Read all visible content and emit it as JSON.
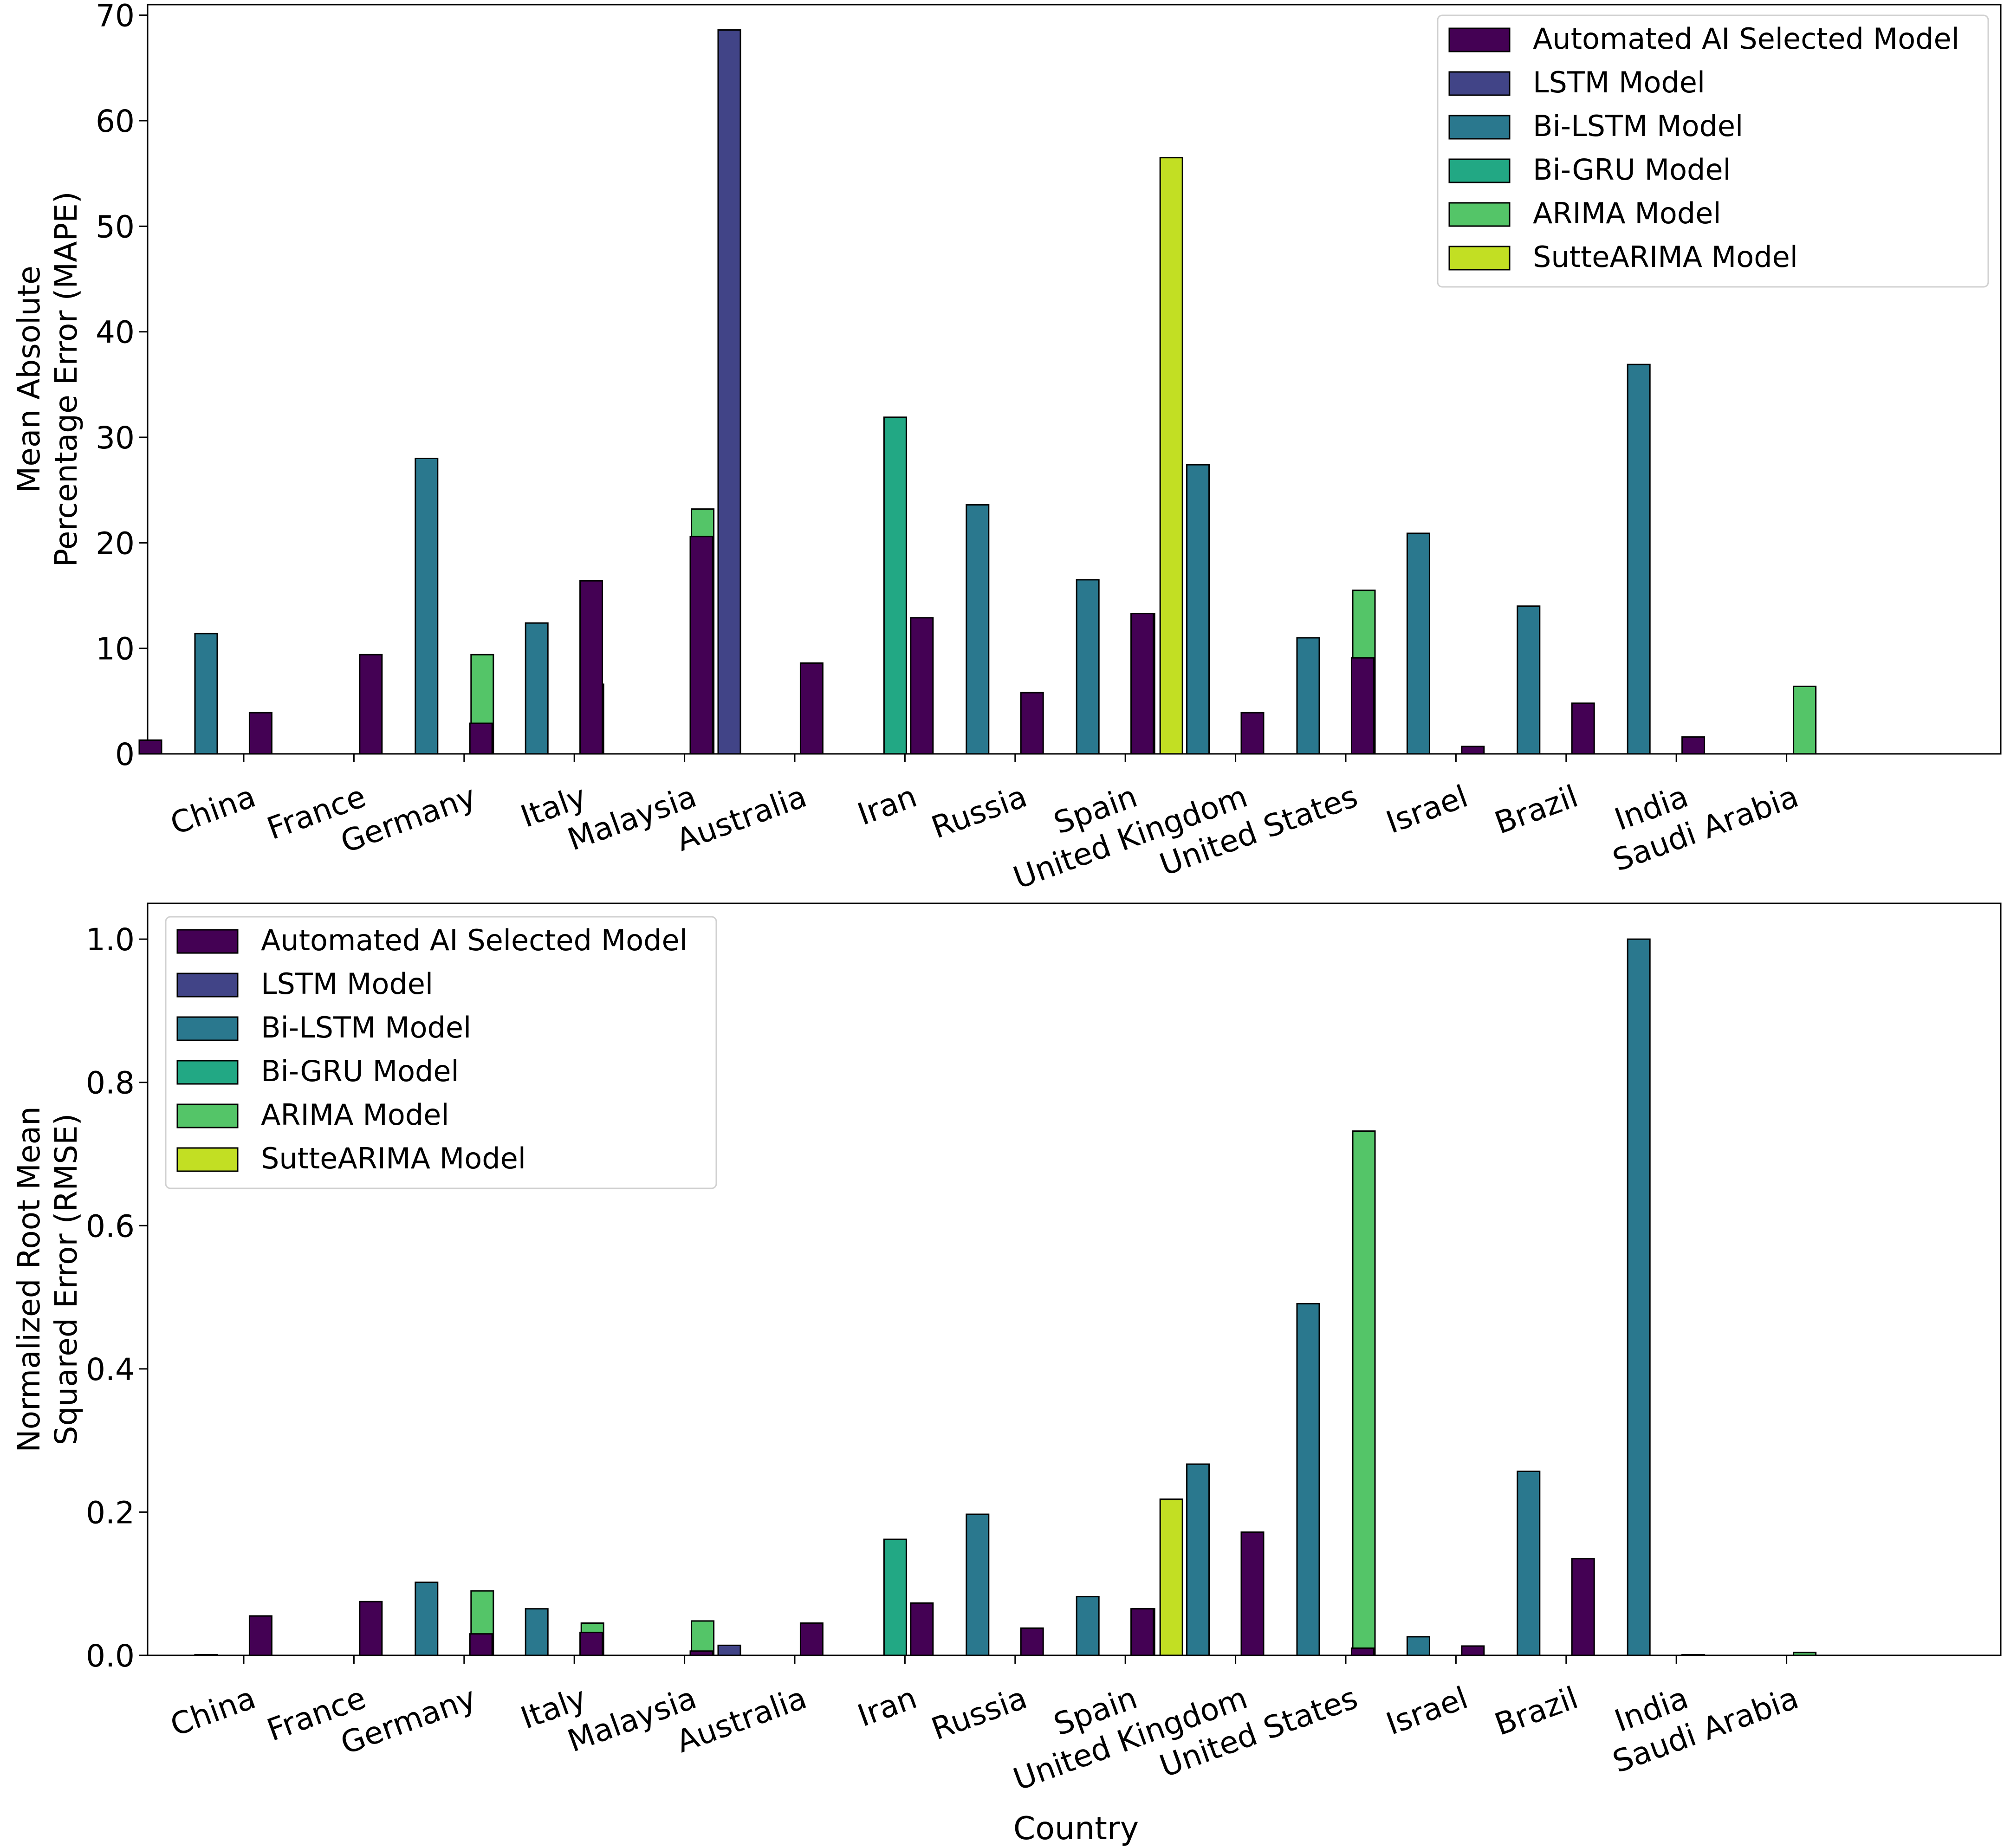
{
  "chart_data": [
    {
      "type": "bar",
      "title": "",
      "xlabel": "",
      "ylabel_lines": [
        "Mean Absolute",
        "Percentage Error (MAPE)"
      ],
      "ylim": [
        0,
        71
      ],
      "yticks": [
        "0",
        "10",
        "20",
        "30",
        "40",
        "50",
        "60",
        "70"
      ],
      "ytick_values": [
        0,
        10,
        20,
        30,
        40,
        50,
        60,
        70
      ],
      "legend_position": "top-right",
      "categories": [
        "China",
        "France",
        "Germany",
        "Italy",
        "Malaysia",
        "Australia",
        "Iran",
        "Russia",
        "Spain",
        "United Kingdom",
        "United States",
        "Israel",
        "Brazil",
        "India",
        "Saudi Arabia"
      ],
      "series": [
        {
          "name": "Automated AI Selected Model",
          "values": [
            1.3,
            3.9,
            9.4,
            2.9,
            16.4,
            20.6,
            8.6,
            12.9,
            5.8,
            13.3,
            3.9,
            9.1,
            0.7,
            4.8,
            1.6
          ]
        },
        {
          "name": "LSTM Model",
          "values": [
            0,
            0,
            0,
            0,
            0,
            68.6,
            0,
            0,
            0,
            0,
            0,
            0,
            0,
            0,
            0
          ]
        },
        {
          "name": "Bi-LSTM Model",
          "values": [
            11.4,
            0,
            28.0,
            12.4,
            0,
            0,
            0,
            23.6,
            16.5,
            27.4,
            11.0,
            20.9,
            14.0,
            36.9,
            0
          ]
        },
        {
          "name": "Bi-GRU Model",
          "values": [
            0,
            0,
            0,
            0,
            0,
            0,
            31.9,
            0,
            0,
            0,
            0,
            0,
            0,
            0,
            0
          ]
        },
        {
          "name": "ARIMA Model",
          "values": [
            0,
            0,
            9.4,
            6.6,
            23.2,
            0,
            0,
            0,
            13.3,
            0,
            15.5,
            0,
            0,
            0,
            6.4
          ]
        },
        {
          "name": "SutteARIMA Model",
          "values": [
            0,
            0,
            0,
            0,
            0,
            0,
            0,
            0,
            56.5,
            0,
            0,
            0,
            0,
            0,
            0
          ]
        }
      ]
    },
    {
      "type": "bar",
      "title": "",
      "xlabel": "Country",
      "ylabel_lines": [
        "Normalized Root Mean",
        "Squared Error (RMSE)"
      ],
      "ylim": [
        0,
        1.05
      ],
      "yticks": [
        "0.0",
        "0.2",
        "0.4",
        "0.6",
        "0.8",
        "1.0"
      ],
      "ytick_values": [
        0,
        0.2,
        0.4,
        0.6,
        0.8,
        1.0
      ],
      "legend_position": "top-left",
      "categories": [
        "China",
        "France",
        "Germany",
        "Italy",
        "Malaysia",
        "Australia",
        "Iran",
        "Russia",
        "Spain",
        "United Kingdom",
        "United States",
        "Israel",
        "Brazil",
        "India",
        "Saudi Arabia"
      ],
      "series": [
        {
          "name": "Automated AI Selected Model",
          "values": [
            0,
            0.055,
            0.075,
            0.03,
            0.032,
            0.006,
            0.045,
            0.073,
            0.038,
            0.065,
            0.172,
            0.01,
            0.013,
            0.135,
            0.001
          ]
        },
        {
          "name": "LSTM Model",
          "values": [
            0,
            0,
            0,
            0,
            0,
            0.014,
            0,
            0,
            0,
            0,
            0,
            0,
            0,
            0,
            0
          ]
        },
        {
          "name": "Bi-LSTM Model",
          "values": [
            0.001,
            0,
            0.102,
            0.065,
            0,
            0,
            0,
            0.197,
            0.082,
            0.267,
            0.491,
            0.026,
            0.257,
            1.0,
            0
          ]
        },
        {
          "name": "Bi-GRU Model",
          "values": [
            0,
            0,
            0,
            0,
            0,
            0,
            0.162,
            0,
            0,
            0,
            0,
            0,
            0,
            0,
            0
          ]
        },
        {
          "name": "ARIMA Model",
          "values": [
            0,
            0,
            0.09,
            0.045,
            0.048,
            0,
            0,
            0,
            0.065,
            0,
            0.732,
            0,
            0,
            0,
            0.004
          ]
        },
        {
          "name": "SutteARIMA Model",
          "values": [
            0,
            0,
            0,
            0,
            0,
            0,
            0,
            0,
            0.218,
            0,
            0,
            0,
            0,
            0,
            0
          ]
        }
      ]
    }
  ],
  "colors": {
    "Automated AI Selected Model": "#440154",
    "LSTM Model": "#414487",
    "Bi-LSTM Model": "#2a788e",
    "Bi-GRU Model": "#22a884",
    "ARIMA Model": "#54c568",
    "SutteARIMA Model": "#c2df23"
  }
}
